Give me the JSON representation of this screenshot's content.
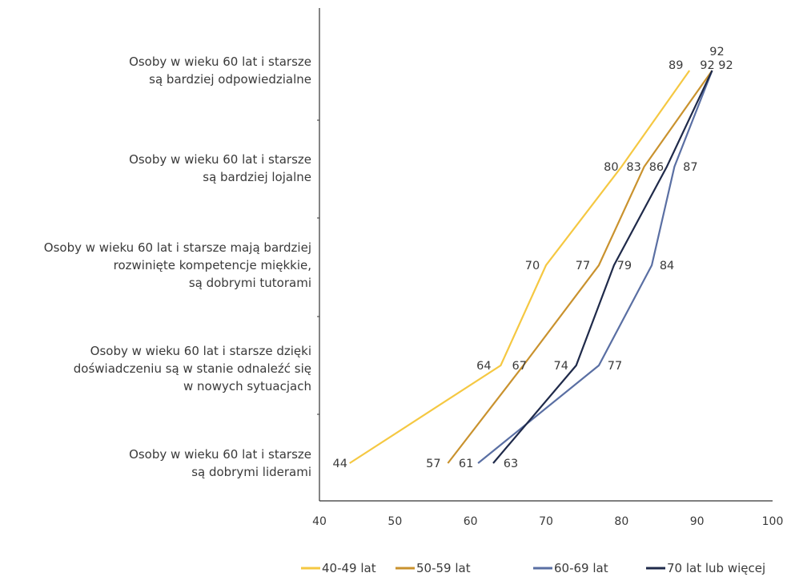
{
  "chart_data": {
    "type": "line",
    "orientation": "horizontal-values",
    "categories": [
      "Osoby w wieku 60 lat i starsze|są bardziej odpowiedzialne",
      "Osoby w wieku 60 lat i starsze|są bardziej lojalne",
      "Osoby w wieku 60 lat i starsze mają bardziej|rozwinięte kompetencje miękkie,|są dobrymi tutorami",
      "Osoby w wieku 60 lat i starsze dzięki|doświadczeniu są w stanie odnaleźć się|w nowych sytuacjach",
      "Osoby w wieku 60 lat i starsze|są dobrymi liderami"
    ],
    "series": [
      {
        "name": "40-49 lat",
        "color": "#f5c842",
        "values": [
          89,
          80,
          70,
          64,
          44
        ]
      },
      {
        "name": "50-59 lat",
        "color": "#c9922e",
        "values": [
          92,
          83,
          77,
          67,
          57
        ]
      },
      {
        "name": "60-69 lat",
        "color": "#5a6fa3",
        "values": [
          92,
          87,
          84,
          77,
          61
        ]
      },
      {
        "name": "70 lat lub więcej",
        "color": "#1f2a4a",
        "values": [
          92,
          86,
          79,
          74,
          63
        ]
      }
    ],
    "xlim": [
      40,
      100
    ],
    "xticks": [
      "40",
      "50",
      "60",
      "70",
      "80",
      "90",
      "100"
    ],
    "title": "",
    "xlabel": "",
    "ylabel": "",
    "grid": false,
    "legend": "bottom"
  }
}
